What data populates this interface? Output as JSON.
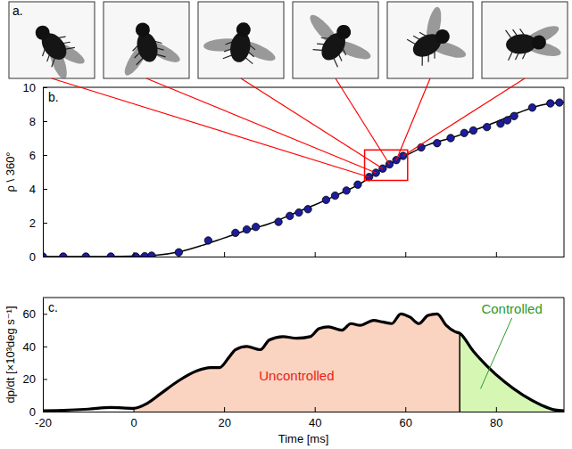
{
  "panel_a": {
    "label": "a.",
    "frames": [
      52,
      53.5,
      55,
      56.5,
      58,
      59.5
    ]
  },
  "chart_data": [
    {
      "label": "b.",
      "type": "scatter",
      "y_label": "ρ \\ 360°",
      "xlim": [
        -20,
        95
      ],
      "ylim": [
        0,
        10
      ],
      "xticks": [
        -20,
        0,
        20,
        40,
        60,
        80
      ],
      "yticks": [
        0,
        2,
        4,
        6,
        8,
        10
      ],
      "tick_labels": "y",
      "series": [
        {
          "type": "scatter",
          "color": "#1c1c9c",
          "marker": "circle",
          "x": [
            -20,
            -15.5,
            -10.5,
            -5,
            0.5,
            2.5,
            4,
            10,
            16.5,
            22.5,
            25,
            27,
            32,
            34.5,
            36.5,
            38.5,
            42.5,
            44.5,
            47,
            49.5,
            52,
            53.5,
            55,
            56.5,
            58,
            59.5,
            63.5,
            67,
            70,
            73,
            75,
            78,
            81,
            82.5,
            84,
            88,
            92,
            94
          ],
          "values": [
            0,
            0,
            0,
            0,
            0,
            0.02,
            0.05,
            0.25,
            0.95,
            1.4,
            1.6,
            1.75,
            2.05,
            2.4,
            2.6,
            2.8,
            3.35,
            3.6,
            3.9,
            4.25,
            4.7,
            4.95,
            5.2,
            5.45,
            5.7,
            5.95,
            6.45,
            6.7,
            7.0,
            7.3,
            7.45,
            7.65,
            7.85,
            8.05,
            8.3,
            8.8,
            9.05,
            9.1
          ]
        },
        {
          "type": "line",
          "color": "#000000",
          "line_style": "solid",
          "x": [
            -20,
            -15,
            -10,
            -5,
            0,
            5,
            10,
            15,
            20,
            25,
            30,
            35,
            40,
            45,
            50,
            55,
            60,
            65,
            70,
            75,
            80,
            85,
            90,
            95
          ],
          "values": [
            0,
            0,
            0,
            0,
            0.02,
            0.08,
            0.28,
            0.65,
            1.1,
            1.55,
            1.95,
            2.5,
            3.05,
            3.65,
            4.3,
            5.2,
            5.95,
            6.6,
            7.0,
            7.45,
            7.95,
            8.5,
            8.95,
            9.1
          ]
        }
      ],
      "highlight_box": {
        "x": [
          51,
          60.5
        ],
        "y": [
          4.5,
          6.3
        ],
        "color": "#ff0000"
      }
    },
    {
      "label": "c.",
      "type": "area",
      "x_label": "Time [ms]",
      "y_label": "dp/dt [×10³deg s⁻¹]",
      "xlim": [
        -20,
        95
      ],
      "ylim": [
        0,
        70
      ],
      "xticks": [
        -20,
        0,
        20,
        40,
        60,
        80
      ],
      "yticks": [
        0,
        20,
        40,
        60
      ],
      "series": [
        {
          "type": "line",
          "color": "#000000",
          "line_style": "solid",
          "x": [
            -20,
            -10,
            -5,
            0,
            3,
            6,
            10,
            14,
            17,
            19,
            21,
            22.5,
            25,
            28,
            30,
            33,
            36,
            39,
            41,
            43,
            46,
            48,
            50,
            53,
            55,
            57,
            59,
            61,
            63,
            65,
            67,
            69,
            71,
            72,
            75,
            78,
            82,
            86,
            90,
            93,
            95
          ],
          "values": [
            0.5,
            1.5,
            2.5,
            2,
            5,
            11,
            19,
            25,
            27,
            27,
            33,
            38,
            40,
            38,
            44,
            46,
            45,
            46,
            51,
            52,
            50,
            54,
            53,
            56,
            55,
            54,
            60,
            58,
            54,
            59,
            60,
            53,
            49,
            48,
            37,
            28,
            18,
            10,
            4,
            1,
            0.5
          ]
        }
      ],
      "regions": [
        {
          "name": "Uncontrolled",
          "x": [
            0,
            72
          ],
          "color": "#fbd3c1"
        },
        {
          "name": "Controlled",
          "x": [
            72,
            95
          ],
          "color": "#d6f7b4"
        }
      ]
    }
  ]
}
